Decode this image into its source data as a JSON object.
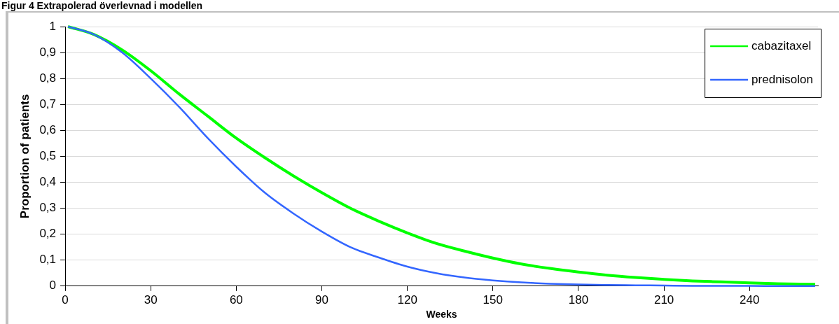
{
  "chart_data": {
    "type": "line",
    "title": "Figur 4 Extrapolerad överlevnad i modellen",
    "xlabel": "Weeks",
    "ylabel": "Proportion of patients",
    "xlim": [
      0,
      264
    ],
    "xticks": [
      0,
      30,
      60,
      90,
      120,
      150,
      180,
      210,
      240
    ],
    "ylim": [
      0,
      1
    ],
    "yticks": [
      {
        "value": 0,
        "label": "0"
      },
      {
        "value": 0.1,
        "label": "0,1"
      },
      {
        "value": 0.2,
        "label": "0,2"
      },
      {
        "value": 0.3,
        "label": "0,3"
      },
      {
        "value": 0.4,
        "label": "0,4"
      },
      {
        "value": 0.5,
        "label": "0,5"
      },
      {
        "value": 0.6,
        "label": "0,6"
      },
      {
        "value": 0.7,
        "label": "0,7"
      },
      {
        "value": 0.8,
        "label": "0,8"
      },
      {
        "value": 0.9,
        "label": "0,9"
      },
      {
        "value": 1,
        "label": "1"
      }
    ],
    "x": [
      1,
      10,
      20,
      30,
      40,
      50,
      60,
      70,
      80,
      90,
      100,
      110,
      120,
      130,
      140,
      150,
      160,
      170,
      180,
      190,
      200,
      210,
      220,
      230,
      240,
      250,
      263
    ],
    "series": [
      {
        "name": "cabazitaxel",
        "color": "#00ff00",
        "values": [
          1,
          0.97,
          0.91,
          0.83,
          0.74,
          0.655,
          0.57,
          0.495,
          0.425,
          0.36,
          0.3,
          0.25,
          0.205,
          0.165,
          0.135,
          0.108,
          0.085,
          0.068,
          0.054,
          0.042,
          0.033,
          0.026,
          0.02,
          0.016,
          0.012,
          0.009,
          0.007
        ]
      },
      {
        "name": "prednisolon",
        "color": "#3366ff",
        "values": [
          1,
          0.97,
          0.9,
          0.8,
          0.69,
          0.57,
          0.46,
          0.36,
          0.28,
          0.21,
          0.15,
          0.11,
          0.075,
          0.05,
          0.033,
          0.022,
          0.014,
          0.009,
          0.006,
          0.004,
          0.003,
          0.002,
          0.001,
          0.001,
          0.001,
          0,
          0
        ]
      }
    ],
    "grid": "y",
    "legend": "top right",
    "marker": "none",
    "line_style": "solid"
  }
}
